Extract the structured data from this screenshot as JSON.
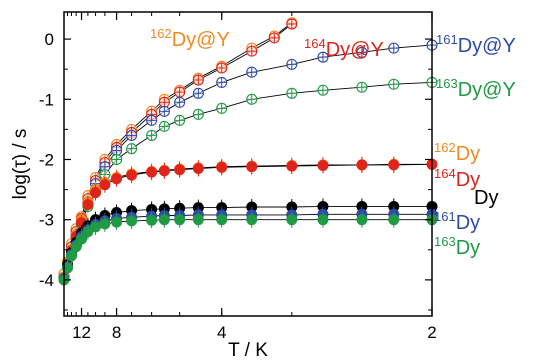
{
  "chart_data": {
    "type": "scatter",
    "title": "",
    "xlabel": "T / K",
    "ylabel": "log(τ) / s",
    "x_axis": {
      "scale": "reciprocal",
      "tick_labels": [
        "12",
        "8",
        "4",
        "2"
      ],
      "tick_values": [
        12,
        8,
        4,
        2
      ],
      "range": [
        16,
        2
      ]
    },
    "y_axis": {
      "range": [
        -4.6,
        0.45
      ],
      "tick_values": [
        0,
        -1,
        -2,
        -3,
        -4
      ],
      "tick_labels": [
        "0",
        "-1",
        "-2",
        "-3",
        "-4"
      ]
    },
    "grid": false,
    "legend": "labels placed next to curves",
    "series": [
      {
        "name": "162Dy@Y",
        "label": {
          "sup": "162",
          "main": "Dy@Y"
        },
        "color": "#F08A24",
        "fill": "open-crossed",
        "x": [
          16,
          15,
          14,
          13,
          12,
          11,
          10,
          9,
          8,
          7,
          6,
          5.5,
          5,
          4.5,
          4,
          3.5,
          3.2,
          3.0
        ],
        "y": [
          -3.9,
          -3.7,
          -3.4,
          -3.15,
          -2.95,
          -2.6,
          -2.3,
          -2.0,
          -1.75,
          -1.5,
          -1.2,
          -1.0,
          -0.85,
          -0.65,
          -0.45,
          -0.15,
          0.05,
          0.27
        ]
      },
      {
        "name": "164Dy@Y",
        "label": {
          "sup": "164",
          "main": "Dy@Y"
        },
        "color": "#E0241B",
        "fill": "open-crossed",
        "x": [
          16,
          15,
          14,
          13,
          12,
          11,
          10,
          9,
          8,
          7,
          6,
          5.5,
          5,
          4.5,
          4,
          3.5,
          3.2,
          3.0
        ],
        "y": [
          -3.95,
          -3.72,
          -3.45,
          -3.2,
          -2.98,
          -2.65,
          -2.35,
          -2.05,
          -1.8,
          -1.55,
          -1.25,
          -1.05,
          -0.88,
          -0.68,
          -0.48,
          -0.2,
          0.02,
          0.25
        ]
      },
      {
        "name": "161Dy@Y",
        "label": {
          "sup": "161",
          "main": "Dy@Y"
        },
        "color": "#2F4BA8",
        "fill": "open-crossed",
        "x": [
          16,
          15,
          14,
          13,
          12,
          11,
          10,
          9,
          8,
          7,
          6,
          5.5,
          5,
          4.5,
          4,
          3.5,
          3.0,
          2.7,
          2.4,
          2.2,
          2.0
        ],
        "y": [
          -3.95,
          -3.75,
          -3.5,
          -3.25,
          -3.02,
          -2.7,
          -2.4,
          -2.12,
          -1.85,
          -1.6,
          -1.35,
          -1.2,
          -1.05,
          -0.9,
          -0.72,
          -0.55,
          -0.42,
          -0.3,
          -0.22,
          -0.15,
          -0.1
        ]
      },
      {
        "name": "163Dy@Y",
        "label": {
          "sup": "163",
          "main": "Dy@Y"
        },
        "color": "#1F9A45",
        "fill": "open-crossed",
        "x": [
          16,
          15,
          14,
          13,
          12,
          11,
          10,
          9,
          8,
          7,
          6,
          5.5,
          5,
          4.5,
          4,
          3.5,
          3.0,
          2.7,
          2.4,
          2.2,
          2.0
        ],
        "y": [
          -3.95,
          -3.78,
          -3.55,
          -3.3,
          -3.08,
          -2.78,
          -2.5,
          -2.25,
          -2.0,
          -1.82,
          -1.6,
          -1.45,
          -1.35,
          -1.25,
          -1.15,
          -1.0,
          -0.9,
          -0.85,
          -0.8,
          -0.75,
          -0.72
        ]
      },
      {
        "name": "162Dy",
        "label": {
          "sup": "162",
          "main": "Dy"
        },
        "color": "#F08A24",
        "fill": "solid",
        "x": [
          16,
          15,
          14,
          13,
          12,
          11,
          10,
          9,
          8,
          7,
          6,
          5.5,
          5,
          4.5,
          4,
          3.5,
          3.0,
          2.7,
          2.4,
          2.2,
          2.0
        ],
        "y": [
          -3.95,
          -3.72,
          -3.5,
          -3.25,
          -3.0,
          -2.7,
          -2.5,
          -2.38,
          -2.3,
          -2.24,
          -2.2,
          -2.18,
          -2.16,
          -2.14,
          -2.12,
          -2.11,
          -2.1,
          -2.09,
          -2.09,
          -2.08,
          -2.08
        ]
      },
      {
        "name": "164Dy",
        "label": {
          "sup": "164",
          "main": "Dy"
        },
        "color": "#E0241B",
        "fill": "solid",
        "x": [
          16,
          15,
          14,
          13,
          12,
          11,
          10,
          9,
          8,
          7,
          6,
          5.5,
          5,
          4.5,
          4,
          3.5,
          3.0,
          2.7,
          2.4,
          2.2,
          2.0
        ],
        "y": [
          -3.98,
          -3.75,
          -3.52,
          -3.28,
          -3.05,
          -2.75,
          -2.55,
          -2.42,
          -2.32,
          -2.26,
          -2.21,
          -2.19,
          -2.17,
          -2.15,
          -2.13,
          -2.12,
          -2.11,
          -2.1,
          -2.09,
          -2.09,
          -2.08
        ]
      },
      {
        "name": "Dy",
        "label": {
          "sup": "",
          "main": "Dy"
        },
        "color": "#000000",
        "fill": "solid",
        "x": [
          16,
          15,
          14,
          13,
          12,
          11,
          10,
          9,
          8,
          7,
          6,
          5.5,
          5,
          4.5,
          4,
          3.5,
          3.0,
          2.7,
          2.4,
          2.2,
          2.0
        ],
        "y": [
          -3.98,
          -3.75,
          -3.55,
          -3.38,
          -3.22,
          -3.1,
          -3.0,
          -2.93,
          -2.88,
          -2.85,
          -2.83,
          -2.82,
          -2.81,
          -2.8,
          -2.8,
          -2.79,
          -2.79,
          -2.78,
          -2.78,
          -2.78,
          -2.78
        ]
      },
      {
        "name": "161Dy",
        "label": {
          "sup": "161",
          "main": "Dy"
        },
        "color": "#2F4BA8",
        "fill": "solid",
        "x": [
          16,
          15,
          14,
          13,
          12,
          11,
          10,
          9,
          8,
          7,
          6,
          5.5,
          5,
          4.5,
          4,
          3.5,
          3.0,
          2.7,
          2.4,
          2.2,
          2.0
        ],
        "y": [
          -3.98,
          -3.78,
          -3.58,
          -3.42,
          -3.28,
          -3.17,
          -3.08,
          -3.02,
          -2.98,
          -2.96,
          -2.94,
          -2.93,
          -2.93,
          -2.92,
          -2.92,
          -2.92,
          -2.92,
          -2.91,
          -2.91,
          -2.91,
          -2.91
        ]
      },
      {
        "name": "163Dy",
        "label": {
          "sup": "163",
          "main": "Dy"
        },
        "color": "#1F9A45",
        "fill": "solid",
        "x": [
          16,
          15,
          14,
          13,
          12,
          11,
          10,
          9,
          8,
          7,
          6,
          5.5,
          5,
          4.5,
          4,
          3.5,
          3.0,
          2.7,
          2.4,
          2.2,
          2.0
        ],
        "y": [
          -4.0,
          -3.8,
          -3.6,
          -3.45,
          -3.32,
          -3.2,
          -3.12,
          -3.07,
          -3.04,
          -3.02,
          -3.01,
          -3.0,
          -3.0,
          -3.0,
          -3.0,
          -3.0,
          -3.0,
          -3.0,
          -3.0,
          -3.0,
          -3.0
        ]
      }
    ]
  }
}
